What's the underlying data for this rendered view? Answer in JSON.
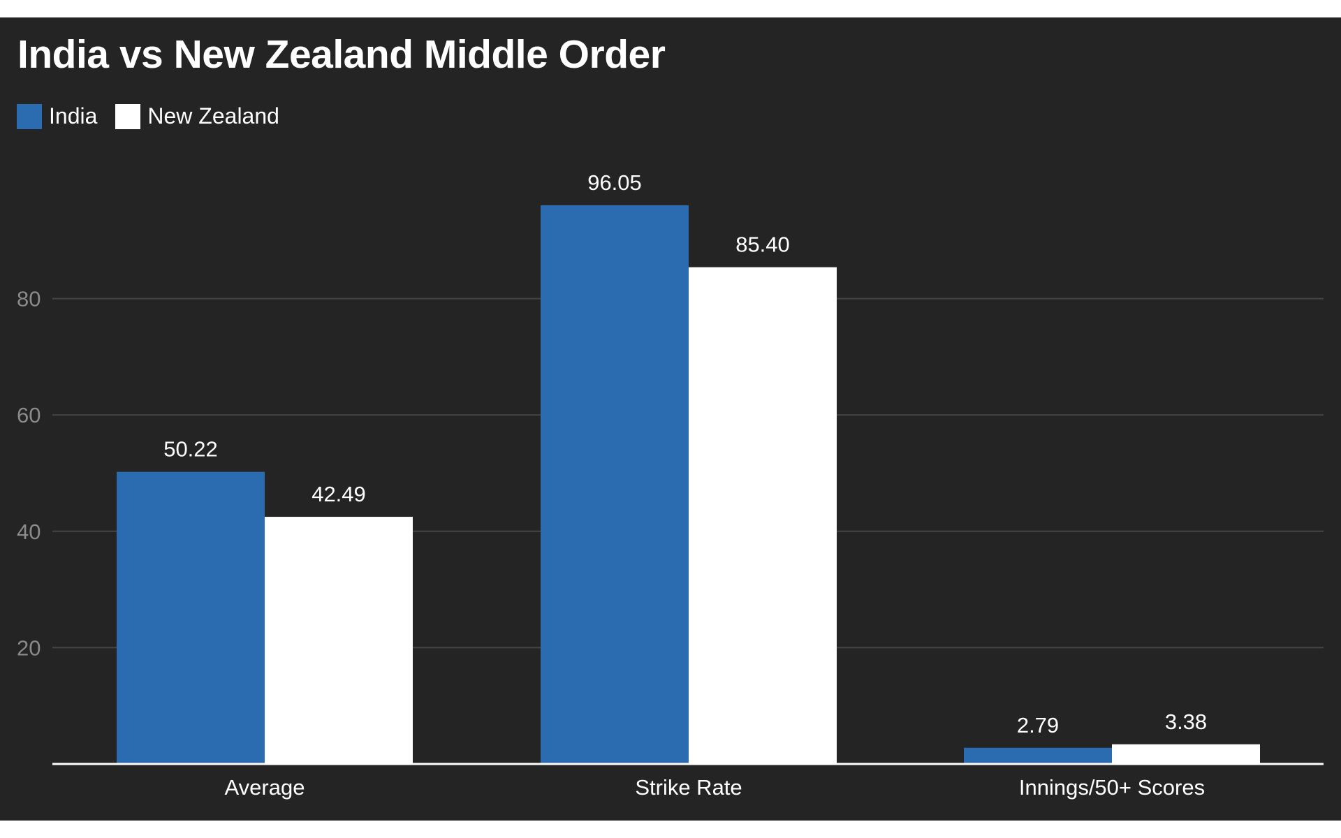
{
  "chart_data": {
    "type": "bar",
    "title": "India vs New Zealand Middle Order",
    "categories": [
      "Average",
      "Strike Rate",
      "Innings/50+ Scores"
    ],
    "series": [
      {
        "name": "India",
        "color": "#2b6cb0",
        "values": [
          50.22,
          96.05,
          2.79
        ],
        "labels": [
          "50.22",
          "96.05",
          "2.79"
        ]
      },
      {
        "name": "New Zealand",
        "color": "#ffffff",
        "values": [
          42.49,
          85.4,
          3.38
        ],
        "labels": [
          "42.49",
          "85.40",
          "3.38"
        ]
      }
    ],
    "yticks": [
      20,
      40,
      60,
      80
    ],
    "ylim": [
      0,
      100
    ],
    "xlabel": "",
    "ylabel": "",
    "legend_position": "top-left",
    "grid": true
  },
  "colors": {
    "background": "#242424",
    "text": "#ffffff",
    "gridline": "#444444",
    "tick_label": "#8a8a8a",
    "axis": "#ffffff"
  }
}
